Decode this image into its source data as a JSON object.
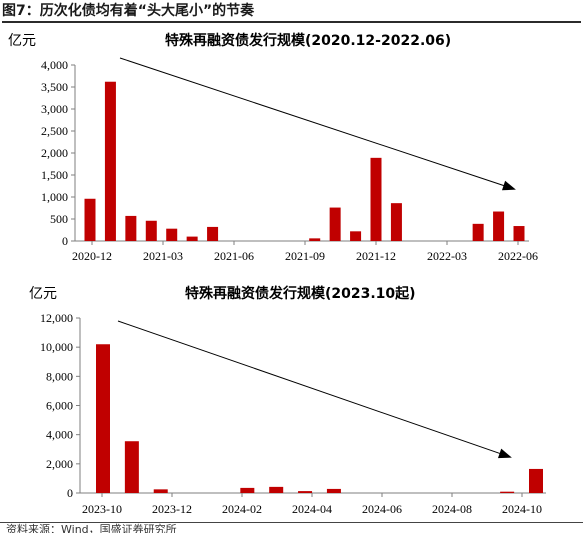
{
  "figure_title": "图7：历次化债均有着“头大尾小”的节奏",
  "footer_text": "资料来源：Wind，国盛证券研究所",
  "colors": {
    "bar": "#c00000",
    "axis": "#7f7f7f",
    "arrow": "#000000"
  },
  "chart_data": [
    {
      "type": "bar",
      "title": "特殊再融资债发行规模(2020.12-2022.06)",
      "unit": "亿元",
      "ylim": [
        0,
        4000
      ],
      "yticks": [
        0,
        500,
        1000,
        1500,
        2000,
        2500,
        3000,
        3500,
        4000
      ],
      "ytick_labels": [
        "0",
        "500",
        "1,000",
        "1,500",
        "2,000",
        "2,500",
        "3,000",
        "3,500",
        "4,000"
      ],
      "xtick_labels": [
        "2020-12",
        "2021-03",
        "2021-06",
        "2021-09",
        "2021-12",
        "2022-03",
        "2022-06"
      ],
      "values": [
        960,
        3620,
        570,
        460,
        280,
        100,
        320,
        0,
        0,
        0,
        0,
        60,
        760,
        220,
        1890,
        860,
        0,
        0,
        0,
        390,
        670,
        340
      ],
      "trend": "downward-arrow"
    },
    {
      "type": "bar",
      "title": "特殊再融资债发行规模(2023.10起)",
      "unit": "亿元",
      "ylim": [
        0,
        12000
      ],
      "yticks": [
        0,
        2000,
        4000,
        6000,
        8000,
        10000,
        12000
      ],
      "ytick_labels": [
        "0",
        "2,000",
        "4,000",
        "6,000",
        "8,000",
        "10,000",
        "12,000"
      ],
      "xtick_labels": [
        "2023-10",
        "2023-12",
        "2024-02",
        "2024-04",
        "2024-06",
        "2024-08",
        "2024-10"
      ],
      "values": [
        10200,
        3550,
        250,
        0,
        0,
        350,
        420,
        130,
        280,
        0,
        0,
        0,
        0,
        0,
        90,
        1650
      ],
      "trend": "downward-arrow"
    }
  ]
}
